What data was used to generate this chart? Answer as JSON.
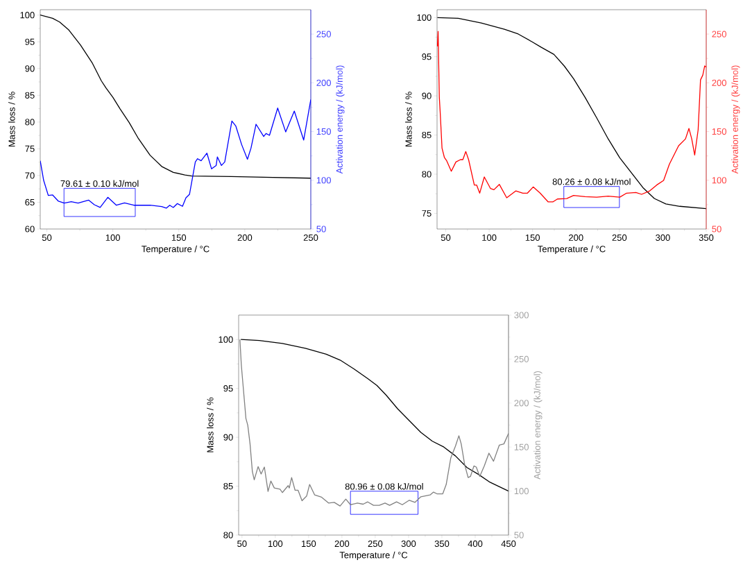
{
  "chart_data": [
    {
      "type": "line",
      "xlabel": "Temperature / °C",
      "ylabel": "Mass loss / %",
      "y2label": "Activation energy / (kJ/mol)",
      "xlim": [
        45,
        250
      ],
      "xticks": [
        50,
        100,
        150,
        200,
        250
      ],
      "ylim": [
        60,
        101
      ],
      "yticks": [
        60,
        65,
        70,
        75,
        80,
        85,
        90,
        95,
        100
      ],
      "y2lim": [
        50,
        275
      ],
      "y2ticks": [
        50,
        100,
        150,
        200,
        250
      ],
      "series": [
        {
          "color": "#000000",
          "x": [
            45,
            54.4,
            59.7,
            66.7,
            75.5,
            84.3,
            91.3,
            94.8,
            100.1,
            105.4,
            112.4,
            119.4,
            128.2,
            137,
            145.8,
            154.6,
            159.8,
            189.7,
            250
          ],
          "values": [
            100,
            99.4,
            98.7,
            97.2,
            94.4,
            91.1,
            87.7,
            86.4,
            84.6,
            82.5,
            79.9,
            76.9,
            73.8,
            71.7,
            70.6,
            70.1,
            69.9,
            69.8,
            69.5
          ]
        },
        {
          "color": "#0000ff",
          "axis": "y2",
          "x": [
            45,
            47.6,
            51.1,
            54.4,
            58.8,
            63.2,
            68.5,
            73.7,
            81.6,
            86,
            90.4,
            96.2,
            102.7,
            108.9,
            115.9,
            128.2,
            137,
            140.5,
            143.1,
            145.8,
            148.9,
            152.8,
            155.4,
            158.1,
            162.5,
            164.2,
            166.9,
            171.3,
            174.8,
            178.3,
            179.2,
            182.3,
            184.8,
            190.2,
            193.2,
            197.6,
            202,
            204.7,
            208.5,
            214.3,
            216.1,
            218.7,
            224.9,
            231,
            237.5,
            244.6,
            250
          ],
          "values": [
            120,
            99.8,
            84.4,
            84.9,
            78.5,
            76.6,
            78,
            76.6,
            79.7,
            74.9,
            72.1,
            82.5,
            74.4,
            76.8,
            74.4,
            74.4,
            73,
            71.4,
            74.4,
            72.1,
            76.1,
            73.3,
            82,
            85.6,
            118.8,
            122.1,
            120,
            127.8,
            111.7,
            115.2,
            124,
            115.2,
            118.8,
            160.8,
            155.6,
            136.6,
            121.6,
            133,
            157.5,
            144.9,
            148,
            146.1,
            174.1,
            149.6,
            171,
            141.3,
            182.9
          ]
        }
      ],
      "bands": [
        {
          "axis": "x",
          "from": 63,
          "to": 117,
          "label": "79.61 ± 0.10 kJ/mol",
          "color": "#0000ff"
        }
      ]
    },
    {
      "type": "line",
      "xlabel": "Temperature / °C",
      "ylabel": "Mass loss / %",
      "y2label": "Activation energy / (kJ/mol)",
      "xlim": [
        40,
        350
      ],
      "xticks": [
        50,
        100,
        150,
        200,
        250,
        300,
        350
      ],
      "ylim": [
        73,
        101
      ],
      "yticks": [
        75,
        80,
        85,
        90,
        95,
        100
      ],
      "y2lim": [
        50,
        275
      ],
      "y2ticks": [
        50,
        100,
        150,
        200,
        250
      ],
      "series": [
        {
          "color": "#000000",
          "x": [
            40.4,
            64.4,
            90.9,
            117.5,
            133.4,
            149.4,
            160,
            174.6,
            186.6,
            197.2,
            210.5,
            223.8,
            237.1,
            250.4,
            263.7,
            277,
            290.2,
            303.5,
            319.5,
            350
          ],
          "values": [
            100,
            99.9,
            99.3,
            98.5,
            97.9,
            96.9,
            96.2,
            95.3,
            93.8,
            92.2,
            89.8,
            87.2,
            84.5,
            82.1,
            80.2,
            78.3,
            76.9,
            76.2,
            75.9,
            75.6
          ]
        },
        {
          "color": "#ff0000",
          "axis": "y2",
          "x": [
            40.4,
            41.2,
            42.6,
            43.6,
            45.7,
            48.4,
            51.1,
            56.4,
            61.7,
            67,
            69.7,
            73.1,
            76.3,
            82.9,
            85.6,
            89.1,
            94.4,
            101.6,
            105.5,
            111.7,
            120.2,
            130.8,
            138.8,
            144.1,
            150.7,
            158.7,
            168,
            173.3,
            178.6,
            189.3,
            197.2,
            210.5,
            223.8,
            237.1,
            250.4,
            258.3,
            269,
            275.6,
            284.9,
            292.9,
            300.9,
            307.5,
            314.2,
            318.2,
            326.1,
            330.1,
            333.3,
            336.7,
            340.7,
            343.4,
            346,
            348.2,
            350
          ],
          "values": [
            237.4,
            252.8,
            185.2,
            169.8,
            133,
            123.5,
            120,
            109.3,
            118.8,
            121.2,
            121.2,
            129.5,
            121.2,
            95.1,
            95.1,
            86.8,
            103.4,
            91.5,
            90.3,
            95.8,
            82,
            89.1,
            86.8,
            86.8,
            93.2,
            86.8,
            77.8,
            77.8,
            80.8,
            81.3,
            84.4,
            83.2,
            82.7,
            83.7,
            82.7,
            86.8,
            87.5,
            85.6,
            89.1,
            95.1,
            99.8,
            116.4,
            128.3,
            135.4,
            142.5,
            153.2,
            142.5,
            125.9,
            152,
            203,
            207.8,
            217.3,
            216
          ]
        }
      ],
      "bands": [
        {
          "axis": "x",
          "from": 186,
          "to": 250,
          "label": "80.26 ± 0.08 kJ/mol",
          "color": "#0000ff"
        }
      ]
    },
    {
      "type": "line",
      "xlabel": "Temperature / °C",
      "ylabel": "Mass loss / %",
      "y2label": "Activation energy / (kJ/mol)",
      "xlim": [
        45,
        450
      ],
      "xticks": [
        50,
        100,
        150,
        200,
        250,
        300,
        350,
        400,
        450
      ],
      "ylim": [
        80,
        102.5
      ],
      "yticks": [
        80,
        85,
        90,
        95,
        100
      ],
      "y2lim": [
        50,
        300
      ],
      "y2ticks": [
        50,
        100,
        150,
        200,
        250,
        300
      ],
      "series": [
        {
          "color": "#000000",
          "x": [
            48.3,
            76,
            110.6,
            145.2,
            176.4,
            197.2,
            217.9,
            238.7,
            252.6,
            266.5,
            283.8,
            301.1,
            318.4,
            335.7,
            353,
            370.3,
            387.7,
            405,
            422.3,
            450
          ],
          "values": [
            100,
            99.9,
            99.6,
            99.1,
            98.5,
            97.9,
            97,
            96,
            95.3,
            94.3,
            92.9,
            91.7,
            90.5,
            89.6,
            89,
            88.1,
            86.9,
            86.2,
            85.4,
            84.5
          ]
        },
        {
          "color": "#808080",
          "axis": "y2",
          "x": [
            46.9,
            49,
            51.7,
            55.9,
            58.7,
            62.1,
            65.6,
            68.4,
            74.2,
            78.7,
            83.6,
            89.1,
            93.3,
            98.5,
            107.1,
            110.6,
            119.3,
            121,
            124.5,
            129.7,
            134.2,
            140.1,
            147,
            151.5,
            159.1,
            169.5,
            179.9,
            188.5,
            197.2,
            205.8,
            212.8,
            223.2,
            231.8,
            238.7,
            247.4,
            256,
            264.7,
            271.6,
            282,
            290.6,
            301.1,
            309.7,
            318.4,
            332.3,
            337.4,
            342.6,
            351.3,
            356.5,
            363.4,
            370.3,
            375.5,
            379,
            384.2,
            389.4,
            392.9,
            398.1,
            401.6,
            406.8,
            413.7,
            420.6,
            427.5,
            436.2,
            443.1,
            450
          ],
          "values": [
            272.3,
            243.3,
            219.6,
            182.6,
            174.7,
            153.6,
            122,
            112.8,
            127.8,
            119.4,
            127.3,
            99.6,
            111.4,
            103.5,
            102.2,
            98.3,
            106.2,
            103.5,
            115.4,
            100.9,
            100.9,
            89,
            94.3,
            107.5,
            95.6,
            93,
            86.4,
            87.2,
            83,
            90.9,
            84.5,
            86.4,
            85.1,
            87.7,
            83.8,
            83.8,
            86.4,
            83.8,
            87.7,
            84.5,
            89.6,
            87.2,
            93.5,
            95.6,
            98.8,
            96.9,
            96.9,
            107.5,
            137.8,
            151,
            162.9,
            153.6,
            129.9,
            115.4,
            116.7,
            128.6,
            127.3,
            116.7,
            128.6,
            143.1,
            133.9,
            152.3,
            153.6,
            165.5
          ]
        }
      ],
      "bands": [
        {
          "axis": "x",
          "from": 212.8,
          "to": 314.2,
          "label": "80.96 ± 0.08 kJ/mol",
          "color": "#0000ff"
        }
      ]
    }
  ]
}
